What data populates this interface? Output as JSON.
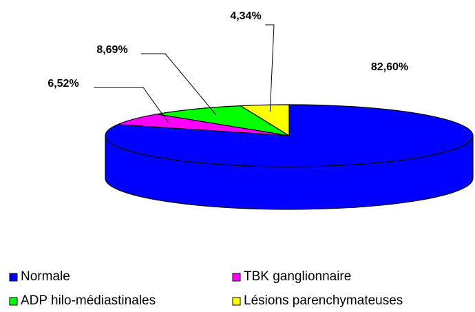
{
  "chart_data": {
    "type": "pie3d",
    "categories": [
      "Normale",
      "TBK ganglionnaire",
      "ADP hilo-médiastinales",
      "Lésions parenchymateuses"
    ],
    "values": [
      82.6,
      6.52,
      8.69,
      4.34
    ],
    "value_labels": [
      "82,60%",
      "6,52%",
      "8,69%",
      "4,34%"
    ],
    "colors": [
      "#0000FF",
      "#FF00FF",
      "#00FF00",
      "#FFFF00"
    ],
    "legend": "bottom"
  }
}
